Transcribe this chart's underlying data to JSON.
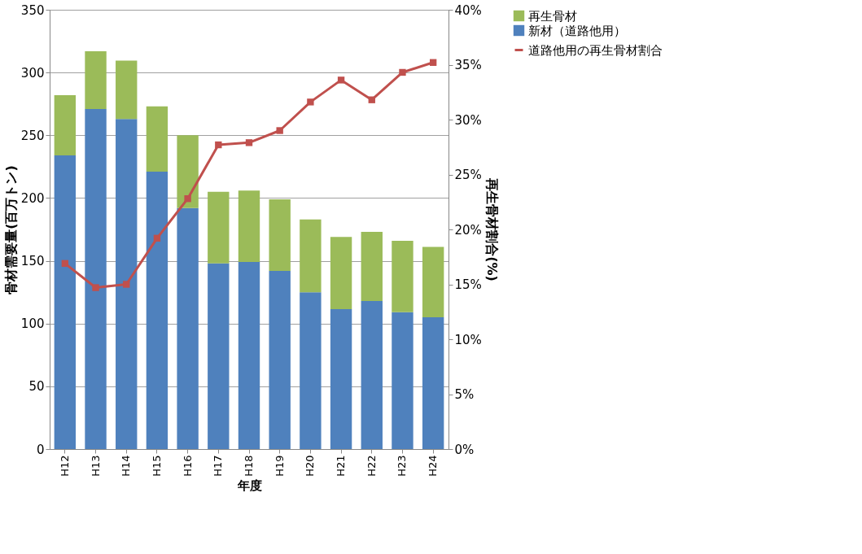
{
  "chart_data": {
    "type": "bar",
    "stacked": true,
    "xlabel": "年度",
    "ylabel": "骨材需要量(百万トン)",
    "y2label": "再生骨材割合(%)",
    "categories": [
      "H12",
      "H13",
      "H14",
      "H15",
      "H16",
      "H17",
      "H18",
      "H19",
      "H20",
      "H21",
      "H22",
      "H23",
      "H24"
    ],
    "series": [
      {
        "name": "新材（道路他用）",
        "color": "#4f81bd",
        "values": [
          234,
          271,
          263,
          221,
          192,
          148,
          149,
          142,
          125,
          111.5,
          118,
          109,
          105
        ]
      },
      {
        "name": "再生骨材",
        "color": "#9bbb59",
        "values": [
          48,
          46,
          46.5,
          52,
          58,
          57,
          57,
          57,
          58,
          57.5,
          55,
          57,
          56
        ]
      },
      {
        "name": "道路他用の再生骨材割合",
        "type": "line",
        "axis": "y2",
        "color": "#c0504d",
        "marker": "square",
        "values": [
          16.9,
          14.7,
          15.0,
          19.2,
          22.8,
          27.7,
          27.9,
          29.0,
          31.6,
          33.6,
          31.8,
          34.3,
          35.2
        ]
      }
    ],
    "ylim": [
      0,
      350
    ],
    "yticks": [
      0,
      50,
      100,
      150,
      200,
      250,
      300,
      350
    ],
    "y2lim": [
      0,
      40
    ],
    "y2ticks": [
      {
        "value": 0,
        "label": "0%"
      },
      {
        "value": 5,
        "label": "5%"
      },
      {
        "value": 10,
        "label": "10%"
      },
      {
        "value": 15,
        "label": "15%"
      },
      {
        "value": 20,
        "label": "20%"
      },
      {
        "value": 25,
        "label": "25%"
      },
      {
        "value": 30,
        "label": "30%"
      },
      {
        "value": 35,
        "label": "35%"
      },
      {
        "value": 40,
        "label": "40%"
      }
    ],
    "grid": "y",
    "legend": "right"
  }
}
